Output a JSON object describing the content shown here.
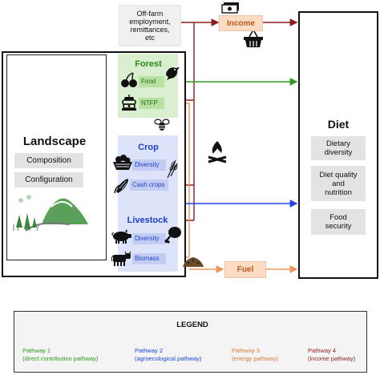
{
  "landscape": {
    "title": "Landscape",
    "items": [
      "Composition",
      "Configuration"
    ]
  },
  "forest": {
    "title": "Forest",
    "items": [
      "Food",
      "NTFP"
    ]
  },
  "crop": {
    "title": "Crop",
    "items": [
      "Diversity",
      "Cash crops"
    ]
  },
  "livestock": {
    "title": "Livestock",
    "items": [
      "Diversity",
      "Biomass"
    ]
  },
  "off_farm": {
    "lines": [
      "Off-farm",
      "employment,",
      "remittances,",
      "etc"
    ]
  },
  "income": {
    "label": "Income"
  },
  "fuel": {
    "label": "Fuel"
  },
  "diet": {
    "title": "Diet",
    "items": [
      [
        "Dietary",
        "diversity"
      ],
      [
        "Diet quality",
        "and",
        "nutrition"
      ],
      [
        "Food",
        "security"
      ]
    ]
  },
  "legend": {
    "title": "LEGEND",
    "entries": [
      {
        "name": "Pathway 1",
        "desc": "(direct contribution pathway)",
        "color": "#2e9a1d"
      },
      {
        "name": "Pathway 2",
        "desc": "(agroecological pathway)",
        "color": "#1f44e0"
      },
      {
        "name": "Pathway 3",
        "desc": "(energy pathway)",
        "color": "#f0935a"
      },
      {
        "name": "Pathway 4",
        "desc": "(income pathway)",
        "color": "#8b1d1d"
      }
    ]
  },
  "colors": {
    "forest_panel": "#d9efcf",
    "crop_panel": "#dde4fa",
    "income_fuel_fill": "#fcdcc4"
  },
  "icons": [
    "cherries-icon",
    "bird-icon",
    "beehive-icon",
    "bee-icon",
    "fruit-basket-icon",
    "wheat-icon",
    "corn-icon",
    "pig-icon",
    "meat-icon",
    "cow-icon",
    "fire-icon",
    "woodpile-icon",
    "money-icon",
    "shopping-basket-icon",
    "landscape-illustration"
  ]
}
